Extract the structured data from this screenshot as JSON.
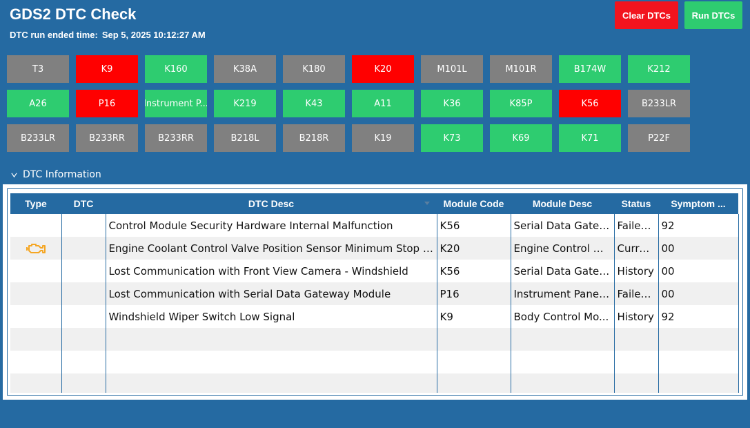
{
  "app": {
    "title": "GDS2 DTC Check",
    "run_time_label": "DTC run ended time:",
    "run_time_value": "Sep 5, 2025 10:12:27 AM"
  },
  "toolbar": {
    "clear_label": "Clear DTCs",
    "run_label": "Run DTCs"
  },
  "colors": {
    "background": "#256aa2",
    "green": "#2ecc70",
    "red": "#ff0000",
    "gray": "#808080"
  },
  "modules": [
    {
      "label": "T3",
      "status": "gray"
    },
    {
      "label": "K9",
      "status": "red"
    },
    {
      "label": "K160",
      "status": "green"
    },
    {
      "label": "K38A",
      "status": "gray"
    },
    {
      "label": "K180",
      "status": "gray"
    },
    {
      "label": "K20",
      "status": "red"
    },
    {
      "label": "M101L",
      "status": "gray"
    },
    {
      "label": "M101R",
      "status": "gray"
    },
    {
      "label": "B174W",
      "status": "green"
    },
    {
      "label": "K212",
      "status": "green"
    },
    {
      "label": "A26",
      "status": "green"
    },
    {
      "label": "P16",
      "status": "red"
    },
    {
      "label": "Instrument P...",
      "status": "green"
    },
    {
      "label": "K219",
      "status": "green"
    },
    {
      "label": "K43",
      "status": "green"
    },
    {
      "label": "A11",
      "status": "green"
    },
    {
      "label": "K36",
      "status": "green"
    },
    {
      "label": "K85P",
      "status": "green"
    },
    {
      "label": "K56",
      "status": "red"
    },
    {
      "label": "B233LR",
      "status": "gray"
    },
    {
      "label": "B233LR",
      "status": "gray"
    },
    {
      "label": "B233RR",
      "status": "gray"
    },
    {
      "label": "B233RR",
      "status": "gray"
    },
    {
      "label": "B218L",
      "status": "gray"
    },
    {
      "label": "B218R",
      "status": "gray"
    },
    {
      "label": "K19",
      "status": "gray"
    },
    {
      "label": "K73",
      "status": "green"
    },
    {
      "label": "K69",
      "status": "green"
    },
    {
      "label": "K71",
      "status": "green"
    },
    {
      "label": "P22F",
      "status": "gray"
    }
  ],
  "dtc_section": {
    "title": "DTC Information"
  },
  "table": {
    "headers": [
      "Type",
      "DTC",
      "DTC Desc",
      "Module Code",
      "Module Desc",
      "Status",
      "Symptom ..."
    ],
    "rows": [
      {
        "type_icon": "",
        "dtc": "",
        "desc": "Control Module Security Hardware Internal Malfunction",
        "module_code": "K56",
        "module_desc": "Serial Data Gatew...",
        "status": "Failed...",
        "symptom": "92"
      },
      {
        "type_icon": "engine-icon",
        "dtc": "",
        "desc": "Engine Coolant Control Valve Position Sensor Minimum Stop Per...",
        "module_code": "K20",
        "module_desc": "Engine Control M...",
        "status": "Current",
        "symptom": "00"
      },
      {
        "type_icon": "",
        "dtc": "",
        "desc": "Lost Communication with Front View Camera - Windshield",
        "module_code": "K56",
        "module_desc": "Serial Data Gatew...",
        "status": "History",
        "symptom": "00"
      },
      {
        "type_icon": "",
        "dtc": "",
        "desc": "Lost Communication with Serial Data Gateway Module",
        "module_code": "P16",
        "module_desc": "Instrument Panel ...",
        "status": "Failed...",
        "symptom": "00"
      },
      {
        "type_icon": "",
        "dtc": "",
        "desc": "Windshield Wiper Switch Low Signal",
        "module_code": "K9",
        "module_desc": "Body Control Mo...",
        "status": "History",
        "symptom": "92"
      }
    ],
    "empty_rows": 3
  }
}
